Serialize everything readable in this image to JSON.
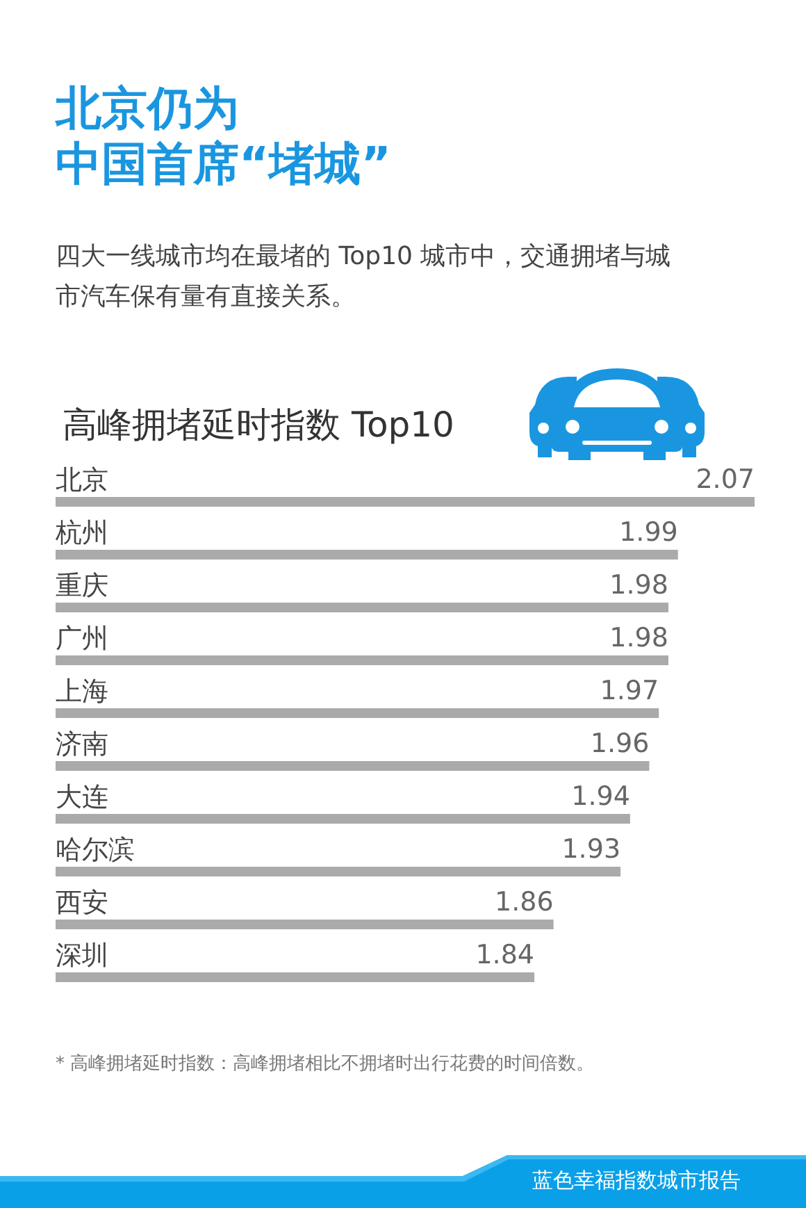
{
  "chart_data": {
    "type": "bar",
    "orientation": "horizontal",
    "title": "北京仍为中国首席“堵城”",
    "subtitle": "四大一线城市均在最堵的 Top10 城市中，交通拥堵与城市汽车保有量有直接关系。",
    "ylabel": "高峰拥堵延时指数 Top10",
    "categories": [
      "北京",
      "杭州",
      "重庆",
      "广州",
      "上海",
      "济南",
      "大连",
      "哈尔滨",
      "西安",
      "深圳"
    ],
    "values": [
      2.07,
      1.99,
      1.98,
      1.98,
      1.97,
      1.96,
      1.94,
      1.93,
      1.86,
      1.84
    ],
    "color": "#aaaaaa",
    "data_labels": true,
    "xlim": [
      1.34,
      2.07
    ],
    "annotations": [
      "* 高峰拥堵延时指数：高峰拥堵相比不拥堵时出行花费的时间倍数。",
      "蓝色幸福指数城市报告"
    ]
  }
}
